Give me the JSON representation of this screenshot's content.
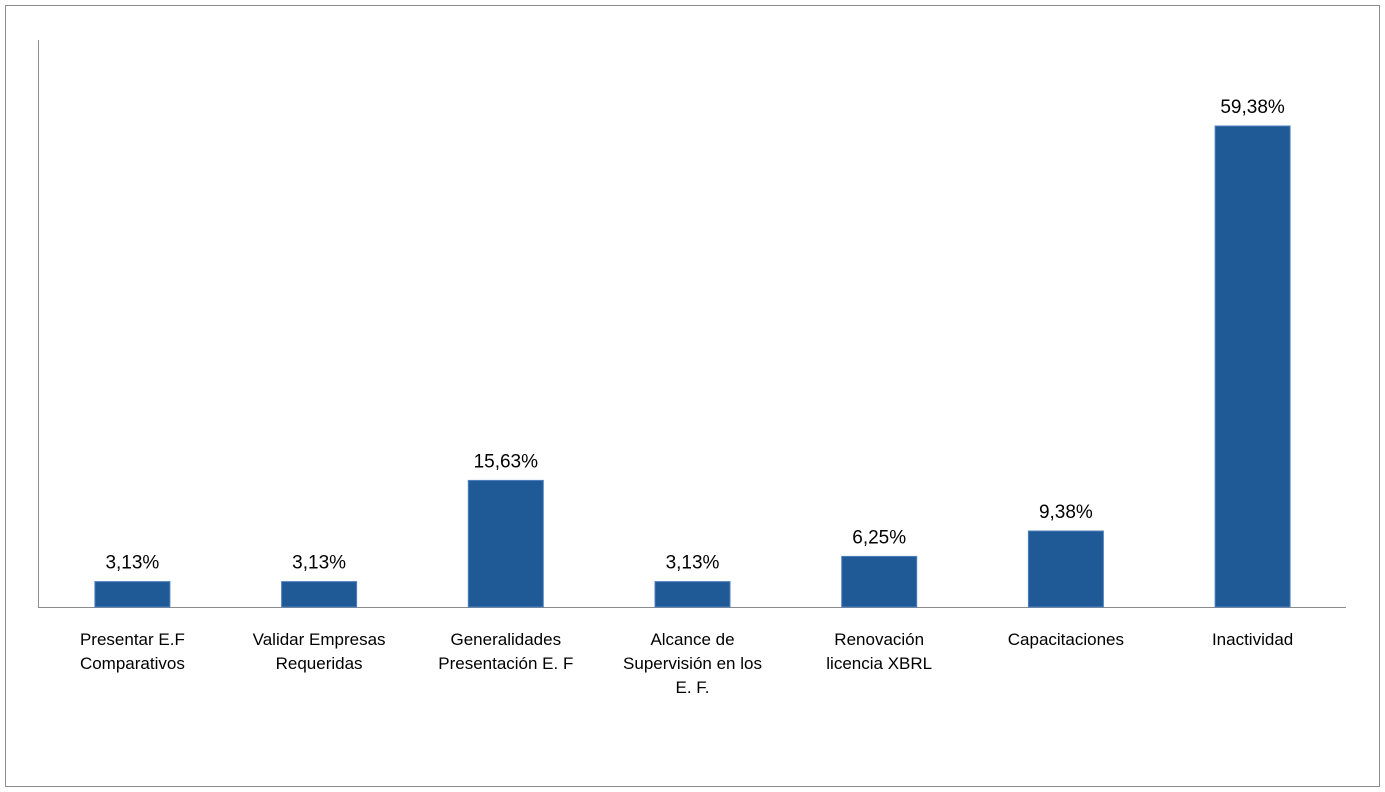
{
  "chart_data": {
    "type": "bar",
    "title": "",
    "xlabel": "",
    "ylabel": "",
    "ylim": [
      0,
      62
    ],
    "grid": false,
    "legend": "none",
    "bar_color": "#1F5A96",
    "bar_edge_color": "#4F81BD",
    "axis_color": "#8C8C8C",
    "categories": [
      [
        "Presentar E.F",
        "Comparativos"
      ],
      [
        "Validar Empresas",
        "Requeridas"
      ],
      [
        "Generalidades",
        "Presentación E. F"
      ],
      [
        "Alcance de",
        "Supervisión en los",
        "E. F."
      ],
      [
        "Renovación",
        "licencia XBRL"
      ],
      [
        "Capacitaciones"
      ],
      [
        "Inactividad"
      ]
    ],
    "values": [
      3.13,
      3.13,
      15.63,
      3.13,
      6.25,
      9.38,
      59.38
    ],
    "data_labels": [
      "3,13%",
      "3,13%",
      "15,63%",
      "3,13%",
      "6,25%",
      "9,38%",
      "59,38%"
    ]
  }
}
